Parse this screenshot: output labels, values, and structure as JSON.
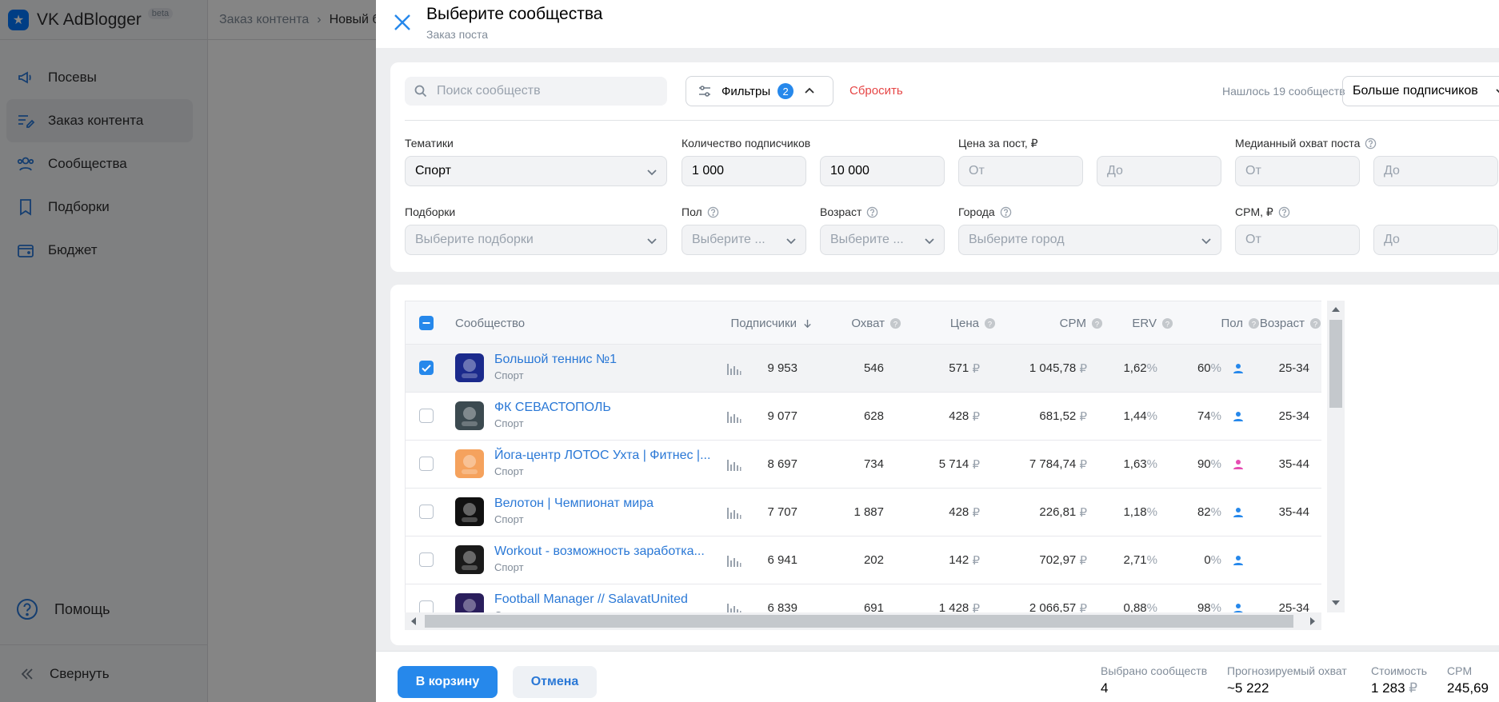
{
  "app": {
    "name": "VK AdBlogger",
    "beta": "beta"
  },
  "sidebar": {
    "items": [
      {
        "label": "Посевы",
        "icon": "megaphone-icon"
      },
      {
        "label": "Заказ контента",
        "icon": "edit-list-icon",
        "active": true
      },
      {
        "label": "Сообщества",
        "icon": "users-icon"
      },
      {
        "label": "Подборки",
        "icon": "bookmark-icon"
      },
      {
        "label": "Бюджет",
        "icon": "wallet-icon"
      }
    ],
    "help": "Помощь",
    "collapse": "Свернуть"
  },
  "breadcrumb": {
    "item1": "Заказ контента",
    "item2": "Новый б"
  },
  "modal": {
    "title": "Выберите сообщества",
    "subtitle": "Заказ поста",
    "search_placeholder": "Поиск сообществ",
    "filters_label": "Фильтры",
    "filters_count": "2",
    "reset_label": "Сбросить",
    "found_text": "Нашлось 19 сообществ",
    "sort_value": "Больше подписчиков",
    "fields": {
      "topics_label": "Тематики",
      "topics_value": "Спорт",
      "subs_label": "Количество подписчиков",
      "subs_from": "1 000",
      "subs_to": "10 000",
      "price_label": "Цена за пост, ₽",
      "price_from": "От",
      "price_to": "До",
      "reach_label": "Медианный охват поста",
      "reach_from": "От",
      "reach_to": "До",
      "collections_label": "Подборки",
      "collections_ph": "Выберите подборки",
      "gender_label": "Пол",
      "gender_ph": "Выберите ...",
      "age_label": "Возраст",
      "age_ph": "Выберите ...",
      "cities_label": "Города",
      "cities_ph": "Выберите город",
      "cpm_label": "CPM, ₽",
      "cpm_from": "От",
      "cpm_to": "До"
    },
    "table": {
      "headers": {
        "community": "Сообщество",
        "subscribers": "Подписчики",
        "reach": "Охват",
        "price": "Цена",
        "cpm": "CPM",
        "erv": "ERV",
        "gender": "Пол",
        "age": "Возраст"
      },
      "currency": "₽",
      "percent": "%",
      "rows": [
        {
          "name": "Большой теннис №1",
          "category": "Спорт",
          "subscribers": "9 953",
          "reach": "546",
          "price": "571",
          "cpm": "1 045,78",
          "erv": "1,62",
          "gender": "60",
          "gender_color": "#2688eb",
          "age": "25-34",
          "checked": true,
          "avatar": "#1b2a8c"
        },
        {
          "name": "ФК СЕВАСТОПОЛЬ",
          "category": "Спорт",
          "subscribers": "9 077",
          "reach": "628",
          "price": "428",
          "cpm": "681,52",
          "erv": "1,44",
          "gender": "74",
          "gender_color": "#2688eb",
          "age": "25-34",
          "checked": false,
          "avatar": "#3c4a50"
        },
        {
          "name": "Йога-центр ЛОТОС Ухта | Фитнес |...",
          "category": "Спорт",
          "subscribers": "8 697",
          "reach": "734",
          "price": "5 714",
          "cpm": "7 784,74",
          "erv": "1,63",
          "gender": "90",
          "gender_color": "#e64db3",
          "age": "35-44",
          "checked": false,
          "avatar": "#f5a25d"
        },
        {
          "name": "Велотон | Чемпионат мира",
          "category": "Спорт",
          "subscribers": "7 707",
          "reach": "1 887",
          "price": "428",
          "cpm": "226,81",
          "erv": "1,18",
          "gender": "82",
          "gender_color": "#2688eb",
          "age": "35-44",
          "checked": false,
          "avatar": "#111111"
        },
        {
          "name": "Workout - возможность заработка...",
          "category": "Спорт",
          "subscribers": "6 941",
          "reach": "202",
          "price": "142",
          "cpm": "702,97",
          "erv": "2,71",
          "gender": "0",
          "gender_color": "#2688eb",
          "age": "",
          "checked": false,
          "avatar": "#1a1a1a"
        },
        {
          "name": "Football Manager // SalavatUnited",
          "category": "Спорт",
          "subscribers": "6 839",
          "reach": "691",
          "price": "1 428",
          "cpm": "2 066,57",
          "erv": "0,88",
          "gender": "98",
          "gender_color": "#2688eb",
          "age": "25-34",
          "checked": false,
          "avatar": "#2a1e5c"
        }
      ]
    },
    "footer": {
      "cart_button": "В корзину",
      "cancel_button": "Отмена",
      "selected_label": "Выбрано сообществ",
      "selected_value": "4",
      "reach_label": "Прогнозируемый охват",
      "reach_value": "~5 222",
      "cost_label": "Стоимость",
      "cost_value": "1 283",
      "cpm_label": "CPM",
      "cpm_value": "245,69"
    }
  }
}
